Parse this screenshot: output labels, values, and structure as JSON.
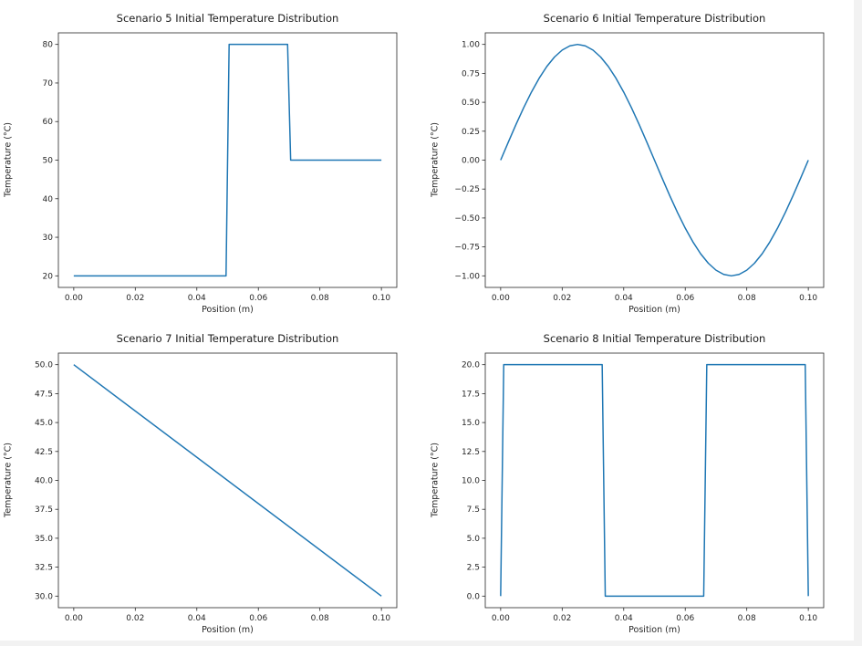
{
  "figure": {
    "background": "#ffffff",
    "page_background": "#f2f2f2",
    "line_color": "#1f77b4",
    "axis_color": "#262626"
  },
  "chart_data": [
    {
      "type": "line",
      "title": "Scenario 5 Initial Temperature Distribution",
      "xlabel": "Position (m)",
      "ylabel": "Temperature (°C)",
      "xlim": [
        -0.005,
        0.105
      ],
      "ylim": [
        17,
        83
      ],
      "xticks": [
        "0.00",
        "0.02",
        "0.04",
        "0.06",
        "0.08",
        "0.10"
      ],
      "yticks": [
        "20",
        "30",
        "40",
        "50",
        "60",
        "70",
        "80"
      ],
      "legend": "none",
      "grid": false,
      "x": [
        0,
        0.0495,
        0.0505,
        0.0695,
        0.0705,
        0.1
      ],
      "y": [
        20,
        20,
        80,
        80,
        50,
        50
      ]
    },
    {
      "type": "line",
      "title": "Scenario 6 Initial Temperature Distribution",
      "xlabel": "Position (m)",
      "ylabel": "Temperature (°C)",
      "xlim": [
        -0.005,
        0.105
      ],
      "ylim": [
        -1.1,
        1.1
      ],
      "xticks": [
        "0.00",
        "0.02",
        "0.04",
        "0.06",
        "0.08",
        "0.10"
      ],
      "yticks": [
        "1.00",
        "0.75",
        "0.50",
        "0.25",
        "0.00",
        "-0.25",
        "-0.50",
        "-0.75",
        "-1.00"
      ],
      "legend": "none",
      "grid": false,
      "x": [
        0,
        0.0025,
        0.005,
        0.0075,
        0.01,
        0.0125,
        0.015,
        0.0175,
        0.02,
        0.0225,
        0.025,
        0.0275,
        0.03,
        0.0325,
        0.035,
        0.0375,
        0.04,
        0.0425,
        0.045,
        0.0475,
        0.05,
        0.0525,
        0.055,
        0.0575,
        0.06,
        0.0625,
        0.065,
        0.0675,
        0.07,
        0.0725,
        0.075,
        0.0775,
        0.08,
        0.0825,
        0.085,
        0.0875,
        0.09,
        0.0925,
        0.095,
        0.0975,
        0.1
      ],
      "y": [
        0,
        0.1564,
        0.309,
        0.454,
        0.5878,
        0.7071,
        0.809,
        0.891,
        0.9511,
        0.9877,
        1,
        0.9877,
        0.9511,
        0.891,
        0.809,
        0.7071,
        0.5878,
        0.454,
        0.309,
        0.1564,
        0,
        -0.1564,
        -0.309,
        -0.454,
        -0.5878,
        -0.7071,
        -0.809,
        -0.891,
        -0.9511,
        -0.9877,
        -1,
        -0.9877,
        -0.9511,
        -0.891,
        -0.809,
        -0.7071,
        -0.5878,
        -0.454,
        -0.309,
        -0.1564,
        0
      ]
    },
    {
      "type": "line",
      "title": "Scenario 7 Initial Temperature Distribution",
      "xlabel": "Position (m)",
      "ylabel": "Temperature (°C)",
      "xlim": [
        -0.005,
        0.105
      ],
      "ylim": [
        29,
        51
      ],
      "xticks": [
        "0.00",
        "0.02",
        "0.04",
        "0.06",
        "0.08",
        "0.10"
      ],
      "yticks": [
        "50.0",
        "47.5",
        "45.0",
        "42.5",
        "40.0",
        "37.5",
        "35.0",
        "32.5",
        "30.0"
      ],
      "legend": "none",
      "grid": false,
      "x": [
        0,
        0.1
      ],
      "y": [
        50,
        30
      ]
    },
    {
      "type": "line",
      "title": "Scenario 8 Initial Temperature Distribution",
      "xlabel": "Position (m)",
      "ylabel": "Temperature (°C)",
      "xlim": [
        -0.005,
        0.105
      ],
      "ylim": [
        -1,
        21
      ],
      "xticks": [
        "0.00",
        "0.02",
        "0.04",
        "0.06",
        "0.08",
        "0.10"
      ],
      "yticks": [
        "0.0",
        "2.5",
        "5.0",
        "7.5",
        "10.0",
        "12.5",
        "15.0",
        "17.5",
        "20.0"
      ],
      "legend": "none",
      "grid": false,
      "x": [
        0,
        0.001,
        0.033,
        0.034,
        0.066,
        0.067,
        0.099,
        0.1
      ],
      "y": [
        0,
        20,
        20,
        0,
        0,
        20,
        20,
        0
      ]
    }
  ]
}
